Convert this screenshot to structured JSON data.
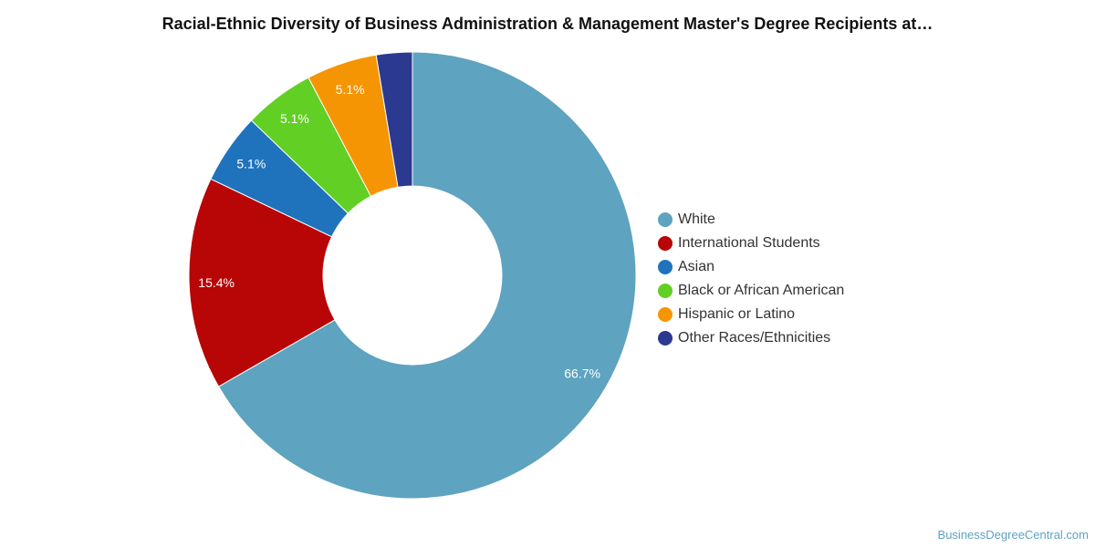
{
  "chart_data": {
    "type": "pie",
    "style": "donut",
    "title": "Racial-Ethnic Diversity of Business Administration & Management Master's Degree Recipients at…",
    "legend_position": "right",
    "slices": [
      {
        "name": "White",
        "value": 66.7,
        "label": "66.7%",
        "color": "#5ea3bf"
      },
      {
        "name": "International Students",
        "value": 15.4,
        "label": "15.4%",
        "color": "#b80505"
      },
      {
        "name": "Asian",
        "value": 5.1,
        "label": "5.1%",
        "color": "#1f73bd"
      },
      {
        "name": "Black or African American",
        "value": 5.1,
        "label": "5.1%",
        "color": "#62cf25"
      },
      {
        "name": "Hispanic or Latino",
        "value": 5.1,
        "label": "5.1%",
        "color": "#f59503"
      },
      {
        "name": "Other Races/Ethnicities",
        "value": 2.6,
        "label": "",
        "color": "#2b3990"
      }
    ]
  },
  "watermark": "BusinessDegreeCentral.com"
}
